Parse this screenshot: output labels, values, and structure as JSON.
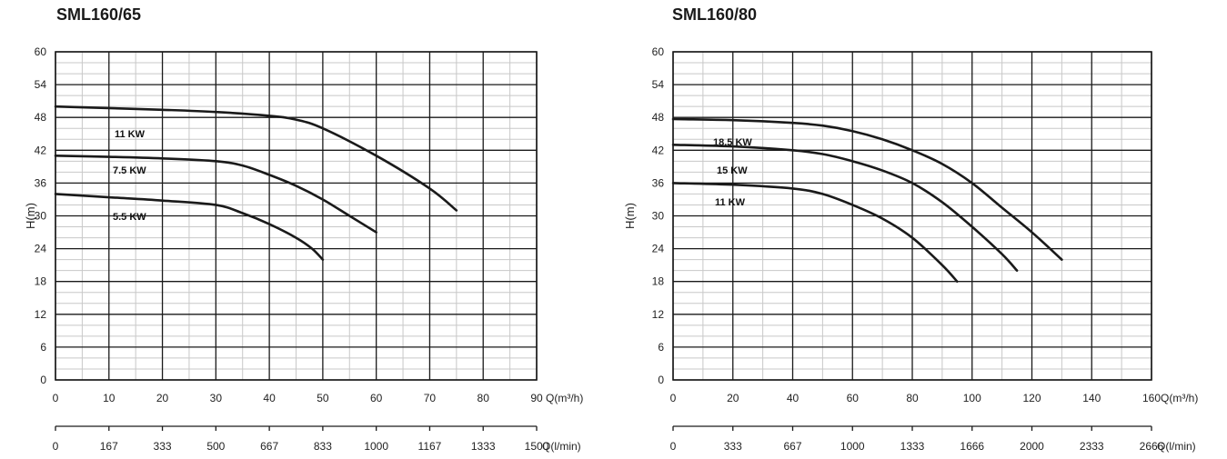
{
  "chart_data": [
    {
      "type": "line",
      "title": "SML160/65",
      "ylabel": "H(m)",
      "xlabel": "Q(m³/h)",
      "xlabel2": "Q(l/min)",
      "xlim": [
        0,
        90
      ],
      "ylim": [
        0,
        60
      ],
      "xticks": [
        "0",
        "10",
        "20",
        "30",
        "40",
        "50",
        "60",
        "70",
        "80",
        "90"
      ],
      "xticks2": [
        "0",
        "167",
        "333",
        "500",
        "667",
        "833",
        "1000",
        "1167",
        "1333",
        "1500"
      ],
      "yticks": [
        "0",
        "6",
        "12",
        "18",
        "24",
        "30",
        "36",
        "42",
        "48",
        "54",
        "60"
      ],
      "grid": true,
      "series": [
        {
          "name": "11 KW",
          "color": "#1a1a1a",
          "x": [
            0,
            10,
            20,
            30,
            40,
            45,
            50,
            60,
            70,
            75
          ],
          "y": [
            50,
            49.7,
            49.4,
            49,
            48.3,
            47.6,
            46,
            41,
            35,
            31
          ]
        },
        {
          "name": "7.5 KW",
          "color": "#1a1a1a",
          "x": [
            0,
            10,
            20,
            30,
            35,
            40,
            45,
            50,
            55,
            60
          ],
          "y": [
            41,
            40.8,
            40.5,
            40,
            39.2,
            37.5,
            35.5,
            33,
            30,
            27
          ]
        },
        {
          "name": "5.5 KW",
          "color": "#1a1a1a",
          "x": [
            0,
            10,
            20,
            30,
            35,
            40,
            45,
            48,
            50
          ],
          "y": [
            34,
            33.4,
            32.8,
            32,
            30.5,
            28.5,
            26,
            24,
            22
          ]
        }
      ]
    },
    {
      "type": "line",
      "title": "SML160/80",
      "ylabel": "H(m)",
      "xlabel": "Q(m³/h)",
      "xlabel2": "Q(l/min)",
      "xlim": [
        0,
        160
      ],
      "ylim": [
        0,
        60
      ],
      "xticks": [
        "0",
        "20",
        "40",
        "60",
        "80",
        "100",
        "120",
        "140",
        "160"
      ],
      "xticks2": [
        "0",
        "333",
        "667",
        "1000",
        "1333",
        "1666",
        "2000",
        "2333",
        "2666"
      ],
      "yticks": [
        "0",
        "6",
        "12",
        "18",
        "24",
        "30",
        "36",
        "42",
        "48",
        "54",
        "60"
      ],
      "grid": true,
      "series": [
        {
          "name": "18.5 KW",
          "color": "#1a1a1a",
          "x": [
            0,
            20,
            40,
            50,
            60,
            70,
            80,
            90,
            100,
            110,
            120,
            130
          ],
          "y": [
            47.7,
            47.5,
            47,
            46.5,
            45.5,
            44,
            42,
            39.5,
            36,
            31.5,
            27,
            22
          ]
        },
        {
          "name": "15 KW",
          "color": "#1a1a1a",
          "x": [
            0,
            20,
            40,
            50,
            60,
            70,
            80,
            90,
            100,
            110,
            115
          ],
          "y": [
            43,
            42.7,
            42,
            41.3,
            40,
            38.3,
            36,
            32.5,
            28,
            23,
            20
          ]
        },
        {
          "name": "11 KW",
          "color": "#1a1a1a",
          "x": [
            0,
            20,
            40,
            50,
            60,
            70,
            80,
            90,
            95
          ],
          "y": [
            36,
            35.7,
            35,
            34,
            32,
            29.5,
            26,
            21,
            18
          ]
        }
      ]
    }
  ]
}
